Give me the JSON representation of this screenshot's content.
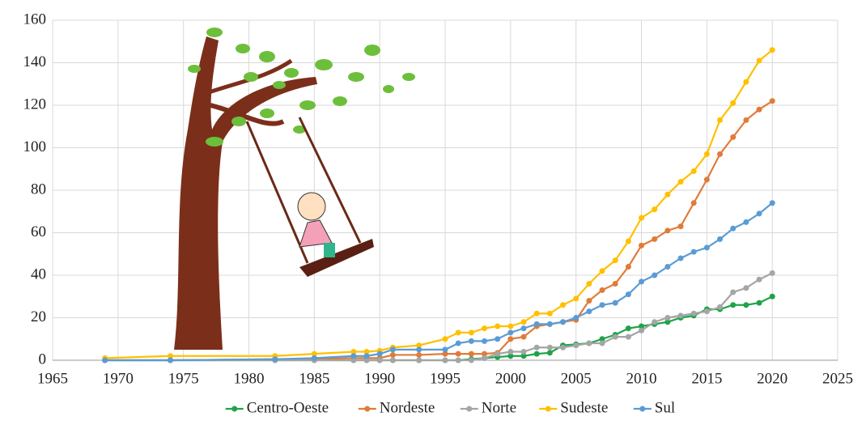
{
  "chart_data": {
    "type": "line",
    "x": [
      1969,
      1974,
      1982,
      1985,
      1988,
      1989,
      1990,
      1991,
      1993,
      1995,
      1996,
      1997,
      1998,
      1999,
      2000,
      2001,
      2002,
      2003,
      2004,
      2005,
      2006,
      2007,
      2008,
      2009,
      2010,
      2011,
      2012,
      2013,
      2014,
      2015,
      2016,
      2017,
      2018,
      2019,
      2020
    ],
    "series": [
      {
        "name": "Centro-Oeste",
        "color": "#1fa34a",
        "values": [
          0,
          0,
          0,
          0,
          0,
          0,
          0,
          0,
          0,
          0,
          0,
          0.5,
          1,
          1.5,
          2,
          2,
          3,
          3.5,
          7,
          7.5,
          8,
          10,
          12,
          15,
          16,
          17,
          18,
          20,
          21,
          24,
          24,
          26,
          26,
          27,
          30
        ]
      },
      {
        "name": "Nordeste",
        "color": "#e07b39",
        "values": [
          0,
          0,
          0.5,
          0.5,
          1,
          1,
          1,
          2.5,
          2.5,
          3,
          3,
          3,
          3,
          3.5,
          10,
          11,
          16,
          17,
          18,
          19,
          28,
          33,
          36,
          44,
          54,
          57,
          61,
          63,
          74,
          85,
          97,
          105,
          113,
          118,
          122
        ]
      },
      {
        "name": "Norte",
        "color": "#a5a5a5",
        "values": [
          0,
          0,
          0,
          0,
          0,
          0,
          0,
          0,
          0,
          0,
          0,
          0,
          1,
          3,
          4,
          4,
          6,
          6,
          6,
          7,
          8,
          8,
          11,
          11,
          14,
          18,
          20,
          21,
          22,
          23,
          25,
          32,
          34,
          38,
          41
        ]
      },
      {
        "name": "Sudeste",
        "color": "#ffc000",
        "values": [
          1,
          2,
          2,
          3,
          4,
          4,
          4.5,
          6,
          7,
          10,
          13,
          13,
          15,
          16,
          16,
          18,
          22,
          22,
          26,
          29,
          36,
          42,
          47,
          56,
          67,
          71,
          78,
          84,
          89,
          97,
          113,
          121,
          131,
          141,
          146
        ]
      },
      {
        "name": "Sul",
        "color": "#5b9bd5",
        "values": [
          0,
          0,
          0.5,
          1,
          2,
          2,
          3,
          5,
          5,
          5,
          8,
          9,
          9,
          10,
          13,
          15,
          17,
          17,
          18,
          20,
          23,
          26,
          27,
          31,
          37,
          40,
          44,
          48,
          51,
          53,
          57,
          62,
          65,
          69,
          74
        ]
      }
    ],
    "xlim": [
      1965,
      2025
    ],
    "xticks": [
      1965,
      1970,
      1975,
      1980,
      1985,
      1990,
      1995,
      2000,
      2005,
      2010,
      2015,
      2020,
      2025
    ],
    "ylim": [
      0,
      160
    ],
    "yticks": [
      0,
      20,
      40,
      60,
      80,
      100,
      120,
      140,
      160
    ],
    "grid": true,
    "legend": "bottom"
  }
}
